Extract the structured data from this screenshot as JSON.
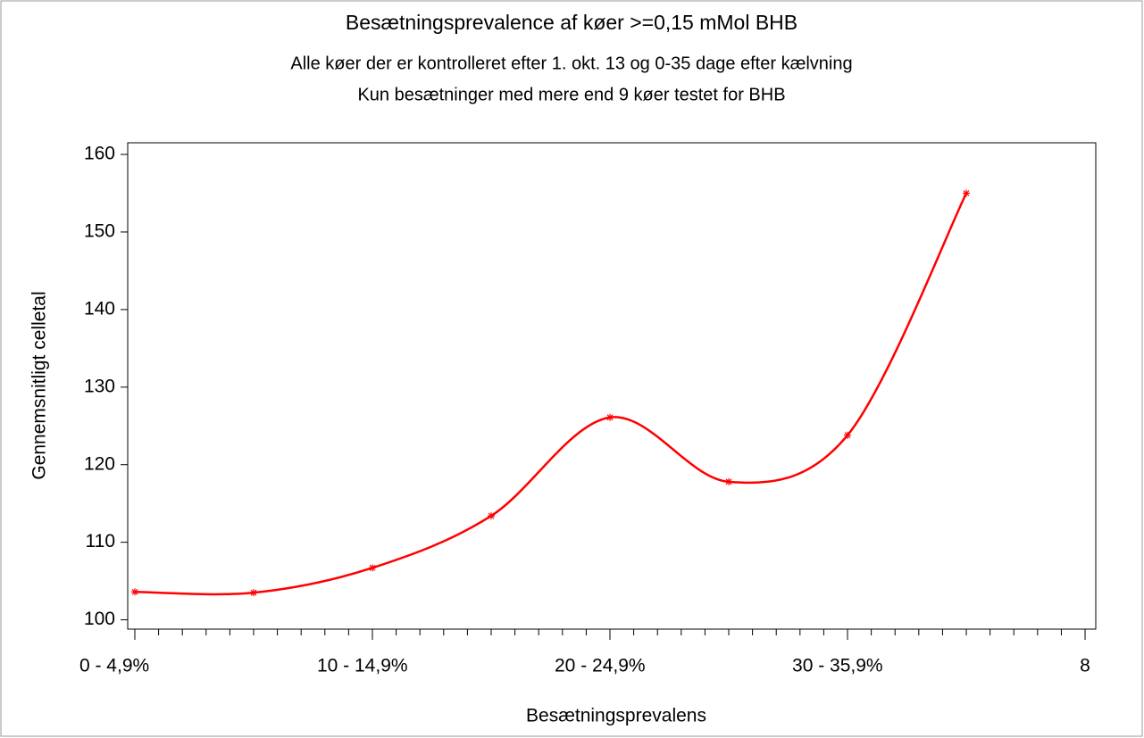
{
  "chart_data": {
    "type": "line",
    "title": "Besætningsprevalence af køer >=0,15 mMol BHB",
    "subtitles": [
      "Alle køer der er kontrolleret efter 1. okt. 13 og 0-35 dage efter kælvning",
      "Kun besætninger med mere end 9 køer testet for BHB"
    ],
    "x_label": "Besætningsprevalens",
    "y_label": "Gennemsnitligt celletal",
    "x": [
      0,
      1,
      2,
      3,
      4,
      5,
      6,
      7
    ],
    "series": [
      {
        "color": "#ff0000",
        "values": [
          103.6,
          103.5,
          106.7,
          113.4,
          126.1,
          117.8,
          123.8,
          155.0
        ]
      }
    ],
    "xlim": [
      -0.06,
      8.09
    ],
    "xticks": [
      {
        "value": 0,
        "label": "0 - 4,9%"
      },
      {
        "value": 2,
        "label": "10 - 14,9%"
      },
      {
        "value": 4,
        "label": "20 - 24,9%"
      },
      {
        "value": 6,
        "label": "30 - 35,9%"
      },
      8
    ],
    "xminorticks": [
      0.2,
      0.4,
      0.6,
      0.8,
      1,
      1.2,
      1.4,
      1.6,
      1.8,
      2.2,
      2.4,
      2.6,
      2.8,
      3,
      3.2,
      3.4,
      3.6,
      3.8,
      4.2,
      4.4,
      4.6,
      4.8,
      5,
      5.2,
      5.4,
      5.6,
      5.8,
      6.2,
      6.4,
      6.6,
      6.8,
      7,
      7.2,
      7.4,
      7.6,
      7.8
    ],
    "ylim": [
      98.8,
      161.5
    ],
    "yticks": [
      100,
      110,
      120,
      130,
      140,
      150,
      160
    ]
  }
}
